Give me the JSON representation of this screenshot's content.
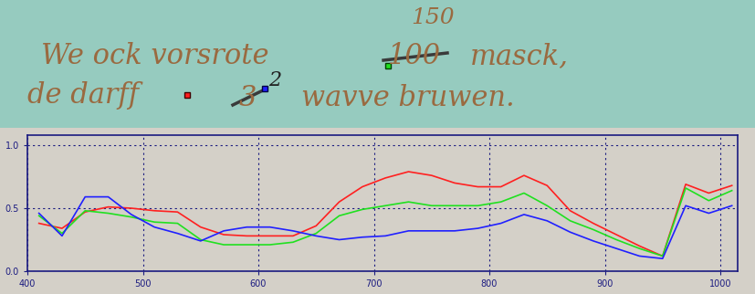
{
  "document": {
    "handwriting": {
      "line1": {
        "words": "We ock vorsrote",
        "struck": "100",
        "correction": "150",
        "rest": "masck,"
      },
      "line2": {
        "words": "de darff",
        "struck": "3",
        "correction": "2",
        "rest": "wavve bruwen."
      }
    }
  },
  "chart_data": {
    "type": "line",
    "x": [
      410,
      430,
      450,
      470,
      490,
      510,
      530,
      550,
      570,
      590,
      610,
      630,
      650,
      670,
      690,
      710,
      730,
      750,
      770,
      790,
      810,
      830,
      850,
      870,
      890,
      910,
      930,
      950,
      970,
      990,
      1010
    ],
    "series": [
      {
        "color": "#ff2020",
        "values": [
          0.38,
          0.34,
          0.47,
          0.51,
          0.5,
          0.48,
          0.47,
          0.35,
          0.29,
          0.28,
          0.28,
          0.28,
          0.36,
          0.55,
          0.67,
          0.74,
          0.79,
          0.76,
          0.7,
          0.67,
          0.67,
          0.76,
          0.68,
          0.48,
          0.38,
          0.29,
          0.2,
          0.12,
          0.69,
          0.62,
          0.68
        ]
      },
      {
        "color": "#20e020",
        "values": [
          0.44,
          0.3,
          0.48,
          0.46,
          0.43,
          0.39,
          0.38,
          0.25,
          0.21,
          0.21,
          0.21,
          0.23,
          0.3,
          0.44,
          0.49,
          0.52,
          0.55,
          0.52,
          0.52,
          0.52,
          0.55,
          0.62,
          0.52,
          0.4,
          0.33,
          0.25,
          0.18,
          0.12,
          0.66,
          0.56,
          0.64
        ]
      },
      {
        "color": "#2020ff",
        "values": [
          0.46,
          0.28,
          0.59,
          0.59,
          0.45,
          0.35,
          0.3,
          0.24,
          0.32,
          0.35,
          0.35,
          0.32,
          0.28,
          0.25,
          0.27,
          0.28,
          0.32,
          0.32,
          0.32,
          0.34,
          0.38,
          0.45,
          0.4,
          0.31,
          0.24,
          0.18,
          0.12,
          0.1,
          0.52,
          0.46,
          0.52
        ]
      }
    ],
    "xlim": [
      400,
      1015
    ],
    "ylim": [
      0,
      1.08
    ],
    "xticks": [
      400,
      500,
      600,
      700,
      800,
      900,
      1000
    ],
    "yticks": [
      {
        "value": 0,
        "label": "0.0"
      },
      {
        "value": 0.5,
        "label": "0.5"
      },
      {
        "value": 1.0,
        "label": "1.0"
      }
    ],
    "grid": true
  }
}
